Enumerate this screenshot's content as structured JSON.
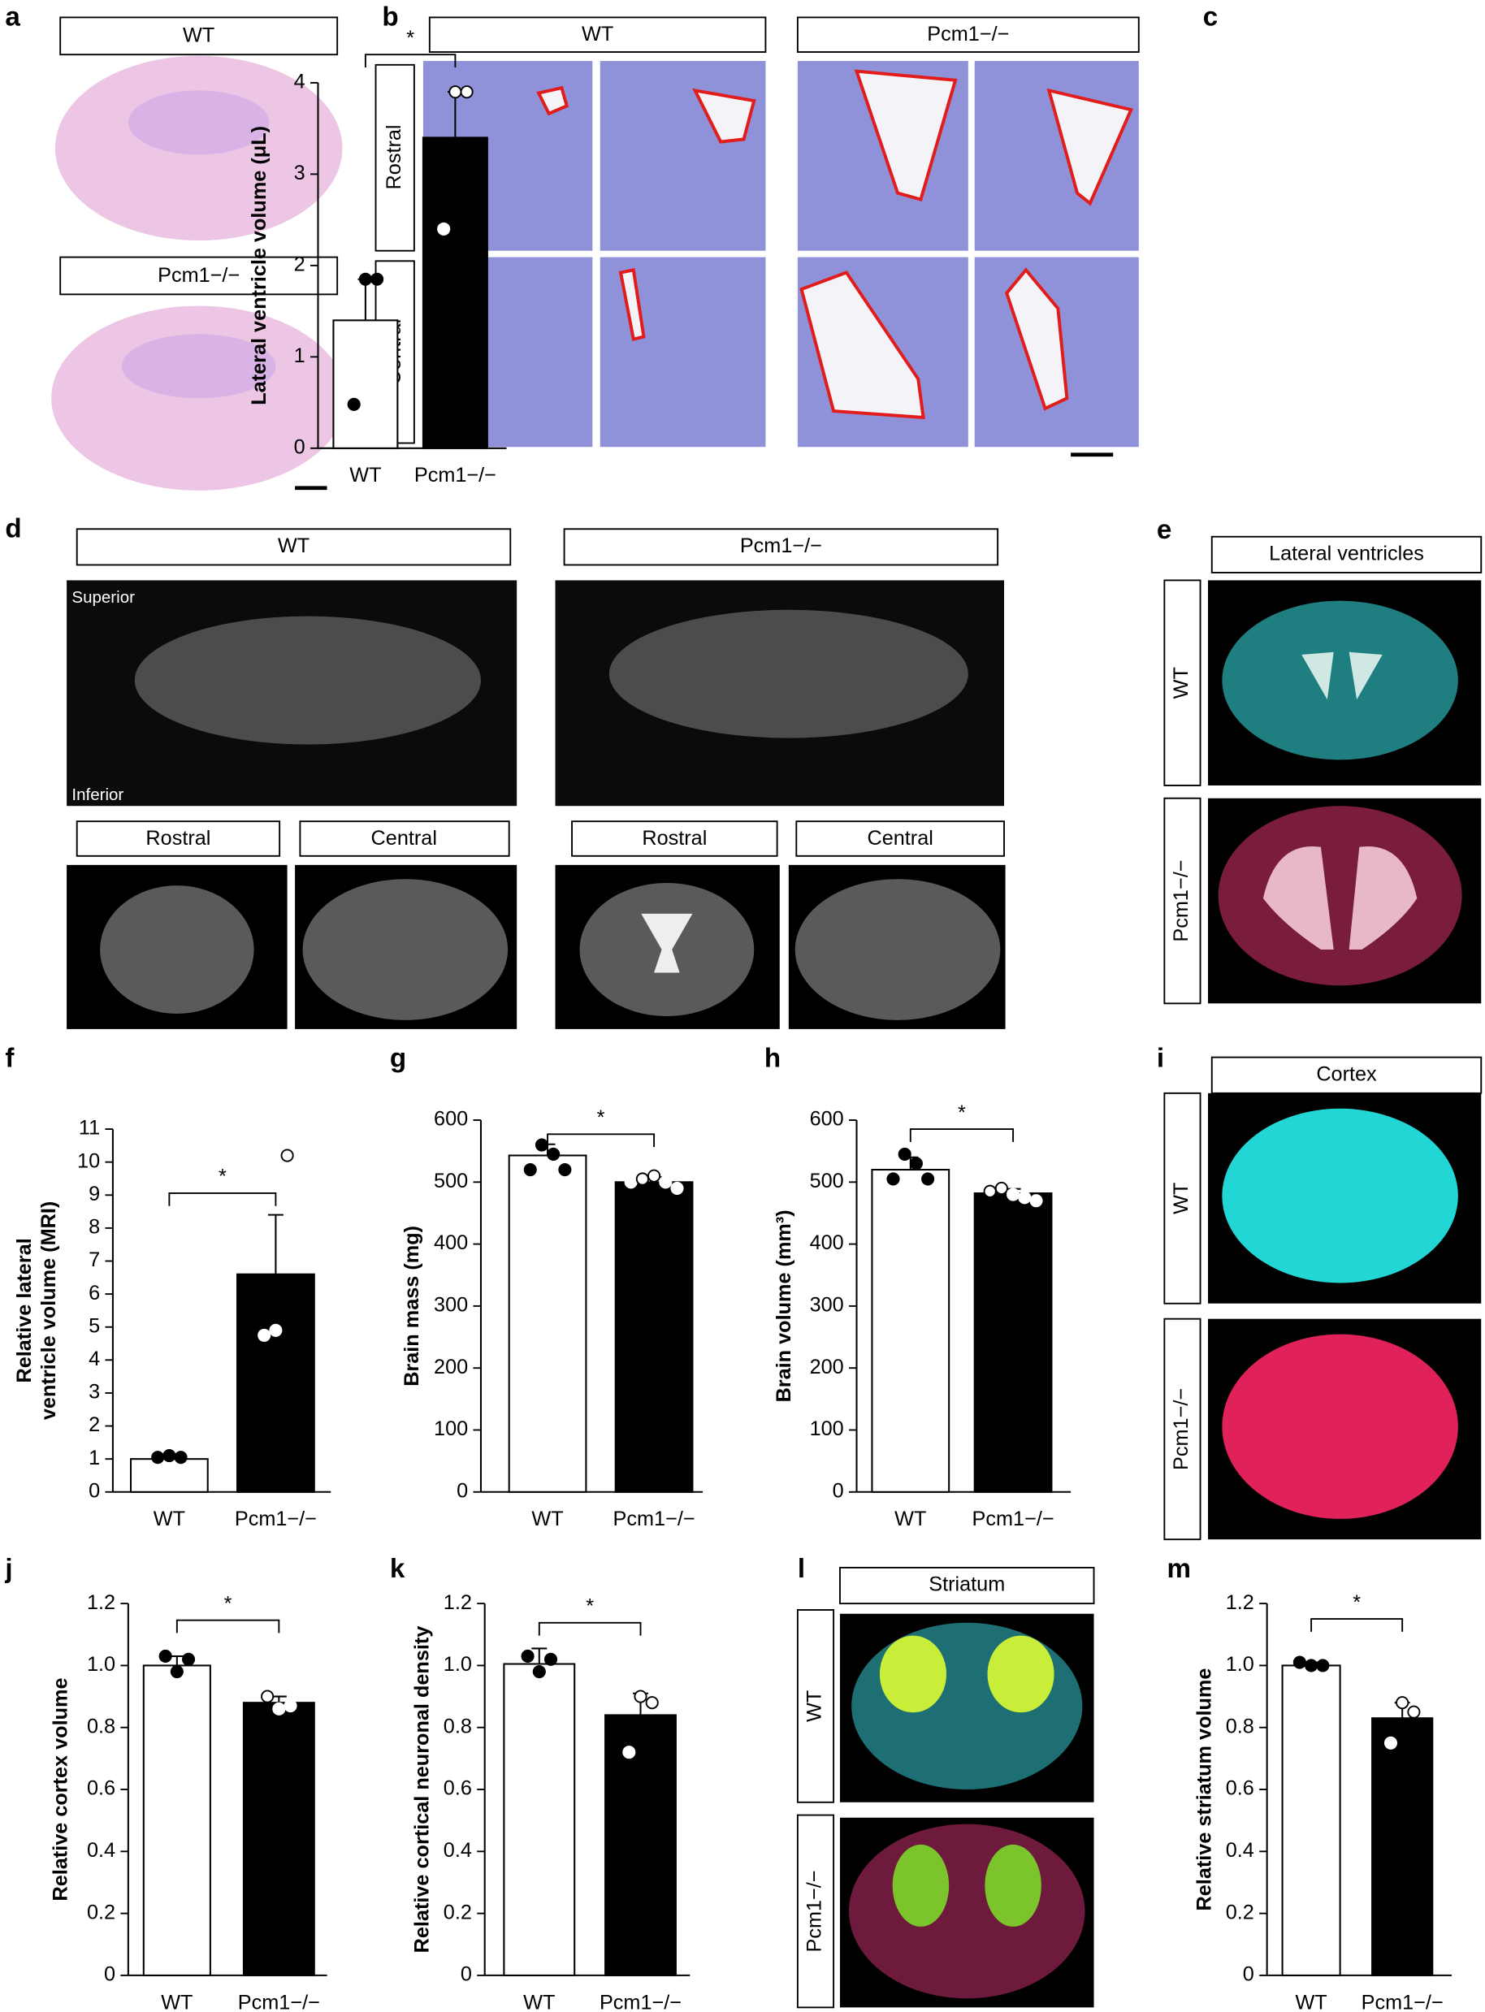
{
  "panels": {
    "a": {
      "letter": "a",
      "labels": [
        "WT",
        "Pcm1−/−"
      ]
    },
    "b": {
      "letter": "b",
      "groups": [
        "WT",
        "Pcm1−/−"
      ],
      "rows": [
        "Rostral",
        "Central"
      ]
    },
    "c": {
      "letter": "c"
    },
    "d": {
      "letter": "d",
      "groups": [
        "WT",
        "Pcm1−/−"
      ],
      "regions": [
        "Rostral",
        "Central"
      ],
      "orientation": [
        "Superior",
        "Inferior"
      ]
    },
    "e": {
      "letter": "e",
      "title": "Lateral ventricles",
      "rows": [
        "WT",
        "Pcm1−/−"
      ]
    },
    "f": {
      "letter": "f"
    },
    "g": {
      "letter": "g"
    },
    "h": {
      "letter": "h"
    },
    "i": {
      "letter": "i",
      "title": "Cortex",
      "rows": [
        "WT",
        "Pcm1−/−"
      ]
    },
    "j": {
      "letter": "j"
    },
    "k": {
      "letter": "k"
    },
    "l": {
      "letter": "l",
      "title": "Striatum",
      "rows": [
        "WT",
        "Pcm1−/−"
      ]
    },
    "m": {
      "letter": "m"
    }
  },
  "chart_data": [
    {
      "type": "bar",
      "ylabel": "Lateral ventricle volume (μL)",
      "categories": [
        "WT",
        "Pcm1−/−"
      ],
      "values": [
        1.4,
        3.4
      ],
      "errors": [
        0.45,
        0.5
      ],
      "points": [
        [
          0.48,
          1.85,
          1.85
        ],
        [
          2.4,
          3.9,
          3.9
        ]
      ],
      "colors": [
        "#ffffff",
        "#000000"
      ],
      "ylim": [
        0,
        4
      ],
      "yticks": [
        0,
        1,
        2,
        3,
        4
      ],
      "significance": "*"
    },
    {
      "type": "bar",
      "ylabel": [
        "Relative lateral",
        "ventricle volume (MRI)"
      ],
      "categories": [
        "WT",
        "Pcm1−/−"
      ],
      "values": [
        1.0,
        6.6
      ],
      "errors": [
        0.05,
        1.8
      ],
      "points": [
        [
          1.05,
          1.1,
          1.05
        ],
        [
          4.75,
          4.9,
          10.2
        ]
      ],
      "colors": [
        "#ffffff",
        "#000000"
      ],
      "ylim": [
        0,
        11
      ],
      "yticks": [
        0,
        1,
        2,
        3,
        4,
        5,
        6,
        7,
        8,
        9,
        10,
        11
      ],
      "significance": "*"
    },
    {
      "type": "bar",
      "ylabel": "Brain mass (mg)",
      "categories": [
        "WT",
        "Pcm1−/−"
      ],
      "values": [
        543,
        500
      ],
      "errors": [
        18,
        8
      ],
      "points": [
        [
          520,
          560,
          545,
          520
        ],
        [
          500,
          505,
          510,
          500,
          490
        ]
      ],
      "colors": [
        "#ffffff",
        "#000000"
      ],
      "ylim": [
        0,
        600
      ],
      "yticks": [
        0,
        100,
        200,
        300,
        400,
        500,
        600
      ],
      "significance": "*"
    },
    {
      "type": "bar",
      "ylabel": "Brain volume (mm³)",
      "categories": [
        "WT",
        "Pcm1−/−"
      ],
      "values": [
        520,
        482
      ],
      "errors": [
        20,
        7
      ],
      "points": [
        [
          505,
          545,
          530,
          505
        ],
        [
          485,
          490,
          480,
          475,
          470
        ]
      ],
      "colors": [
        "#ffffff",
        "#000000"
      ],
      "ylim": [
        0,
        600
      ],
      "yticks": [
        0,
        100,
        200,
        300,
        400,
        500,
        600
      ],
      "significance": "*"
    },
    {
      "type": "bar",
      "ylabel": "Relative cortex volume",
      "categories": [
        "WT",
        "Pcm1−/−"
      ],
      "values": [
        1.0,
        0.88
      ],
      "errors": [
        0.03,
        0.02
      ],
      "points": [
        [
          1.03,
          0.98,
          1.02
        ],
        [
          0.9,
          0.86,
          0.87
        ]
      ],
      "colors": [
        "#ffffff",
        "#000000"
      ],
      "ylim": [
        0,
        1.2
      ],
      "yticks": [
        0,
        0.2,
        0.4,
        0.6,
        0.8,
        {
          "value": 1,
          "label": "1.0"
        },
        1.2
      ],
      "significance": "*"
    },
    {
      "type": "bar",
      "ylabel": "Relative cortical neuronal density",
      "categories": [
        "WT",
        "Pcm1−/−"
      ],
      "values": [
        1.005,
        0.84
      ],
      "errors": [
        0.05,
        0.07
      ],
      "points": [
        [
          1.03,
          0.98,
          1.02
        ],
        [
          0.72,
          0.9,
          0.88
        ]
      ],
      "colors": [
        "#ffffff",
        "#000000"
      ],
      "ylim": [
        0,
        1.2
      ],
      "yticks": [
        0,
        0.2,
        0.4,
        0.6,
        0.8,
        {
          "value": 1,
          "label": "1.0"
        },
        1.2
      ],
      "significance": "*"
    },
    {
      "type": "bar",
      "ylabel": "Relative striatum volume",
      "categories": [
        "WT",
        "Pcm1−/−"
      ],
      "values": [
        1.0,
        0.83
      ],
      "errors": [
        0.01,
        0.05
      ],
      "points": [
        [
          1.01,
          1.0,
          1.0
        ],
        [
          0.75,
          0.88,
          0.85
        ]
      ],
      "colors": [
        "#ffffff",
        "#000000"
      ],
      "ylim": [
        0,
        1.2
      ],
      "yticks": [
        0,
        0.2,
        0.4,
        0.6,
        0.8,
        {
          "value": 1,
          "label": "1.0"
        },
        1.2
      ],
      "significance": "*"
    }
  ]
}
